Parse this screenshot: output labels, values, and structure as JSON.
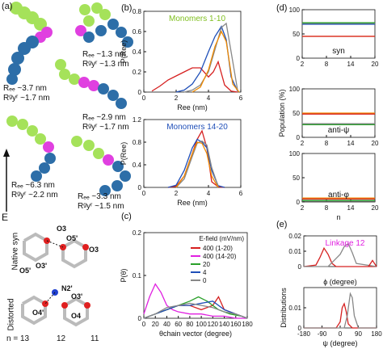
{
  "panels": {
    "a": {
      "label": "(a)",
      "conformers": [
        {
          "ree": "Rₑₑ ~3.7 nm",
          "rgyr": "Rᵍyʳ ~1.7 nm"
        },
        {
          "ree": "Rₑₑ ~1.3 nm",
          "rgyr": "Rᵍyʳ ~1.3 nm"
        },
        {
          "ree": "Rₑₑ ~2.9 nm",
          "rgyr": "Rᵍyʳ ~1.7 nm"
        },
        {
          "ree": "Rₑₑ ~6.3 nm",
          "rgyr": "Rᵍyʳ ~2.2 nm"
        },
        {
          "ree": "Rₑₑ ~3.3 nm",
          "rgyr": "Rᵍyʳ ~1.5 nm"
        }
      ],
      "field_label": "E"
    },
    "b": {
      "label": "(b)"
    },
    "c": {
      "label": "(c)"
    },
    "d": {
      "label": "(d)"
    },
    "e": {
      "label": "(e)"
    },
    "struct": {
      "native_label": "Native syn",
      "distorted_label": "Distorted",
      "atoms_native": [
        "O3",
        "O5'",
        "O3'",
        "O5'",
        "O3"
      ],
      "atoms_distorted": [
        "N2'",
        "O3'",
        "O4'",
        "O4"
      ],
      "n_labels": [
        "n = 13",
        "12",
        "11"
      ]
    }
  },
  "chart_data": [
    {
      "id": "b-top",
      "type": "line",
      "title": "Monomers 1-10",
      "title_color": "#7fbf1f",
      "xlabel": "Ree (nm)",
      "ylabel": "P(Ree)",
      "xlim": [
        0,
        6
      ],
      "ylim": [
        0,
        0.8
      ],
      "xticks": [
        0,
        2,
        4,
        6
      ],
      "yticks": [
        0.0,
        0.2,
        0.4,
        0.6,
        0.8
      ],
      "series": [
        {
          "color": "#d62020",
          "x": [
            0.5,
            1,
            1.5,
            2,
            2.5,
            3,
            3.5,
            4,
            4.3,
            4.6,
            5,
            5.4,
            5.8
          ],
          "y": [
            0.01,
            0.06,
            0.12,
            0.16,
            0.2,
            0.24,
            0.24,
            0.15,
            0.2,
            0.3,
            0.07,
            0.01,
            0
          ]
        },
        {
          "color": "#1f4fb8",
          "x": [
            2,
            2.5,
            3,
            3.5,
            4,
            4.4,
            4.8,
            5.1,
            5.4,
            5.8
          ],
          "y": [
            0,
            0.02,
            0.08,
            0.2,
            0.4,
            0.55,
            0.65,
            0.52,
            0.15,
            0.01
          ]
        },
        {
          "color": "#888888",
          "x": [
            2.5,
            3,
            3.5,
            4,
            4.4,
            4.8,
            5.1,
            5.4,
            5.8
          ],
          "y": [
            0,
            0.02,
            0.07,
            0.2,
            0.42,
            0.64,
            0.68,
            0.4,
            0.02
          ]
        },
        {
          "color": "#f08a00",
          "x": [
            3,
            3.5,
            4,
            4.4,
            4.8,
            5.1,
            5.5,
            5.9
          ],
          "y": [
            0,
            0.05,
            0.22,
            0.45,
            0.6,
            0.5,
            0.08,
            0
          ]
        }
      ]
    },
    {
      "id": "b-bottom",
      "type": "line",
      "title": "Monomers 14-20",
      "title_color": "#1f4fb8",
      "xlabel": "Ree (nm)",
      "ylabel": "P(Ree)",
      "xlim": [
        0,
        6
      ],
      "ylim": [
        0,
        1.2
      ],
      "xticks": [
        0,
        2,
        4,
        6
      ],
      "yticks": [
        0.0,
        0.4,
        0.8,
        1.2
      ],
      "series": [
        {
          "color": "#d62020",
          "x": [
            1.5,
            2,
            2.5,
            3,
            3.3,
            3.6,
            3.9,
            4.2,
            4.6,
            5
          ],
          "y": [
            0,
            0.02,
            0.2,
            0.6,
            0.85,
            1.0,
            0.7,
            0.1,
            0.01,
            0
          ]
        },
        {
          "color": "#1f4fb8",
          "x": [
            1.5,
            2,
            2.5,
            3,
            3.3,
            3.6,
            3.9,
            4.2,
            4.6,
            5
          ],
          "y": [
            0,
            0.04,
            0.3,
            0.7,
            0.85,
            0.8,
            0.7,
            0.3,
            0.03,
            0
          ]
        },
        {
          "color": "#888888",
          "x": [
            2,
            2.5,
            3,
            3.3,
            3.6,
            3.9,
            4.2,
            4.6
          ],
          "y": [
            0,
            0.15,
            0.55,
            0.78,
            0.82,
            0.75,
            0.35,
            0.02
          ]
        },
        {
          "color": "#f08a00",
          "x": [
            2,
            2.5,
            3,
            3.3,
            3.6,
            3.9,
            4.2,
            4.6
          ],
          "y": [
            0,
            0.2,
            0.6,
            0.8,
            0.78,
            0.6,
            0.2,
            0
          ]
        }
      ]
    },
    {
      "id": "c",
      "type": "line",
      "xlabel": "θchain vector (degree)",
      "ylabel": "P(θ)",
      "xlim": [
        0,
        180
      ],
      "ylim": [
        0,
        0.2
      ],
      "xticks": [
        0,
        20,
        40,
        60,
        80,
        100,
        120,
        140,
        160,
        180
      ],
      "yticks": [
        0.0,
        0.1,
        0.2
      ],
      "legend": {
        "title": "E-field (mV/nm)",
        "entries": [
          {
            "label": "400 (1-20)",
            "color": "#d62020"
          },
          {
            "label": "400 (14-20)",
            "color": "#e020e0"
          },
          {
            "label": "20",
            "color": "#2aa02a"
          },
          {
            "label": "4",
            "color": "#1f4fb8"
          },
          {
            "label": "0",
            "color": "#888888"
          }
        ]
      },
      "series": [
        {
          "color": "#e020e0",
          "x": [
            0,
            10,
            20,
            30,
            40,
            50,
            60,
            80,
            100,
            120,
            140,
            160,
            180
          ],
          "y": [
            0.01,
            0.05,
            0.08,
            0.06,
            0.03,
            0.02,
            0.015,
            0.01,
            0.01,
            0.005,
            0.005,
            0,
            0
          ]
        },
        {
          "color": "#d62020",
          "x": [
            0,
            20,
            40,
            60,
            80,
            100,
            120,
            130,
            140,
            160,
            180
          ],
          "y": [
            0,
            0.01,
            0.02,
            0.03,
            0.03,
            0.02,
            0.03,
            0.05,
            0.02,
            0.01,
            0
          ]
        },
        {
          "color": "#2aa02a",
          "x": [
            0,
            20,
            40,
            60,
            80,
            95,
            110,
            130,
            150,
            170,
            180
          ],
          "y": [
            0,
            0.01,
            0.02,
            0.03,
            0.04,
            0.05,
            0.04,
            0.02,
            0.01,
            0.005,
            0
          ]
        },
        {
          "color": "#1f4fb8",
          "x": [
            0,
            20,
            40,
            60,
            80,
            100,
            120,
            140,
            160,
            180
          ],
          "y": [
            0,
            0.01,
            0.02,
            0.03,
            0.03,
            0.035,
            0.04,
            0.02,
            0.01,
            0
          ]
        },
        {
          "color": "#888888",
          "x": [
            0,
            20,
            40,
            60,
            80,
            100,
            120,
            140,
            160,
            180
          ],
          "y": [
            0,
            0.01,
            0.025,
            0.03,
            0.035,
            0.03,
            0.025,
            0.015,
            0.01,
            0
          ]
        }
      ]
    },
    {
      "id": "d-syn",
      "type": "line",
      "panel_title": "syn",
      "xlim": [
        2,
        20
      ],
      "ylim": [
        0,
        100
      ],
      "xticks": [
        2,
        8,
        14,
        20
      ],
      "yticks": [
        0,
        50,
        100
      ],
      "series": [
        {
          "color": "#1f4fb8",
          "y_level": 70
        },
        {
          "color": "#888888",
          "y_level": 72
        },
        {
          "color": "#2aa02a",
          "y_level": 73
        },
        {
          "color": "#f08a00",
          "y_level": 45
        },
        {
          "color": "#d62020",
          "y_level": 45
        }
      ]
    },
    {
      "id": "d-antipsi",
      "type": "line",
      "panel_title": "anti-ψ",
      "ylabel": "Population (%)",
      "xlim": [
        2,
        20
      ],
      "ylim": [
        0,
        100
      ],
      "xticks": [
        2,
        8,
        14,
        20
      ],
      "yticks": [
        0,
        50,
        100
      ],
      "series": [
        {
          "color": "#1f4fb8",
          "y_level": 28
        },
        {
          "color": "#888888",
          "y_level": 28
        },
        {
          "color": "#2aa02a",
          "y_level": 26
        },
        {
          "color": "#f08a00",
          "y_level": 50
        },
        {
          "color": "#d62020",
          "y_level": 48
        }
      ]
    },
    {
      "id": "d-antiphi",
      "type": "line",
      "panel_title": "anti-φ",
      "xlabel": "n",
      "xlim": [
        2,
        20
      ],
      "ylim": [
        0,
        100
      ],
      "xticks": [
        2,
        8,
        14,
        20
      ],
      "yticks": [
        0,
        50,
        100
      ],
      "series": [
        {
          "color": "#1f4fb8",
          "y_level": 2
        },
        {
          "color": "#888888",
          "y_level": 2
        },
        {
          "color": "#2aa02a",
          "y_level": 3
        },
        {
          "color": "#f08a00",
          "y_level": 8
        },
        {
          "color": "#d62020",
          "y_level": 6
        }
      ]
    },
    {
      "id": "e-phi",
      "type": "line",
      "title": "Linkage 12",
      "title_color": "#e020e0",
      "xlabel": "ϕ (degree)",
      "xlim": [
        -180,
        180
      ],
      "ylim": [
        0,
        0.02
      ],
      "yticks": [
        0.0,
        0.01,
        0.02
      ],
      "series": [
        {
          "color": "#d62020",
          "x": [
            -180,
            -120,
            -100,
            -80,
            -60,
            -40,
            -20,
            0,
            180
          ],
          "y": [
            0,
            0.001,
            0.006,
            0.012,
            0.008,
            0.002,
            0,
            0,
            0
          ]
        },
        {
          "color": "#888888",
          "x": [
            -180,
            -60,
            -30,
            0,
            20,
            40,
            60,
            80,
            180
          ],
          "y": [
            0,
            0,
            0.004,
            0.008,
            0.013,
            0.015,
            0.009,
            0.002,
            0
          ]
        },
        {
          "color": "#d62020",
          "x": [
            140,
            160,
            180
          ],
          "y": [
            0,
            0.004,
            0
          ]
        }
      ]
    },
    {
      "id": "e-psi",
      "type": "line",
      "xlabel": "ψ (degree)",
      "ylabel": "Distributions",
      "xlim": [
        -180,
        180
      ],
      "ylim": [
        0,
        0.02
      ],
      "xticks": [
        -180,
        -90,
        0,
        90,
        180
      ],
      "yticks": [
        0.0,
        0.01
      ],
      "series": [
        {
          "color": "#d62020",
          "x": [
            -180,
            -20,
            0,
            10,
            20,
            30,
            40,
            60,
            180
          ],
          "y": [
            0,
            0,
            0.003,
            0.01,
            0.012,
            0.008,
            0.002,
            0,
            0
          ]
        },
        {
          "color": "#888888",
          "x": [
            -180,
            20,
            35,
            50,
            60,
            70,
            90,
            180
          ],
          "y": [
            0,
            0,
            0.006,
            0.017,
            0.015,
            0.006,
            0,
            0
          ]
        }
      ]
    }
  ]
}
